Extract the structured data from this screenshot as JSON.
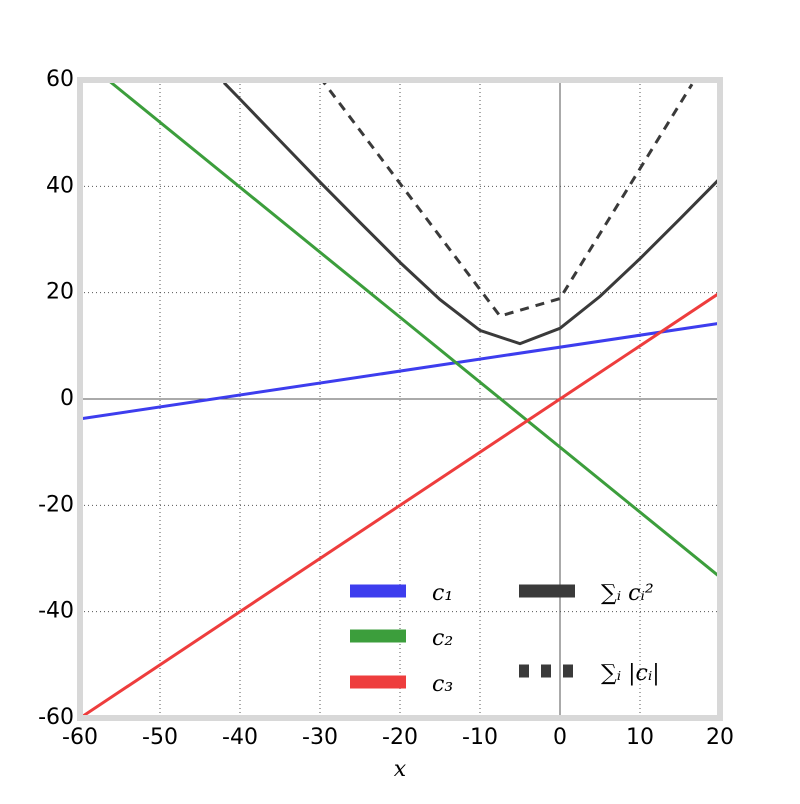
{
  "chart_data": {
    "type": "line",
    "xlabel": "x",
    "xlim": [
      -60,
      20
    ],
    "xticks": [
      -60,
      -50,
      -40,
      -30,
      -20,
      -10,
      0,
      10,
      20
    ],
    "ylim": [
      -60,
      60
    ],
    "yticks": [
      -60,
      -40,
      -20,
      0,
      20,
      40,
      60
    ],
    "grid": true,
    "legend": "lower right",
    "series": [
      {
        "name": "c₁",
        "color": "#3d3dee",
        "style": "solid",
        "x": [
          -60,
          20
        ],
        "values": [
          -3.75,
          14.25
        ]
      },
      {
        "name": "c₂",
        "color": "#3c9e3c",
        "style": "solid",
        "x": [
          -56.5,
          20
        ],
        "values": [
          60,
          -33.5
        ]
      },
      {
        "name": "c₃",
        "color": "#ee3d3d",
        "style": "solid",
        "x": [
          -60,
          20
        ],
        "values": [
          -60,
          20
        ]
      },
      {
        "name": "∑ᵢ cᵢ²",
        "color": "#3a3a3a",
        "style": "solid",
        "x": [
          -42,
          -40,
          -35,
          -30,
          -25,
          -20,
          -15,
          -10,
          -5,
          0,
          5,
          10,
          15,
          20
        ],
        "values": [
          59.5,
          56.4,
          48.6,
          40.8,
          33.2,
          25.7,
          18.7,
          12.9,
          10.4,
          13.3,
          19.3,
          26.4,
          33.9,
          41.5
        ]
      },
      {
        "name": "∑ᵢ |cᵢ|",
        "color": "#3a3a3a",
        "style": "dashed",
        "x": [
          -30,
          -7.5,
          0,
          16.5
        ],
        "values": [
          60.5,
          15.6,
          18.9,
          59.2
        ]
      }
    ]
  }
}
